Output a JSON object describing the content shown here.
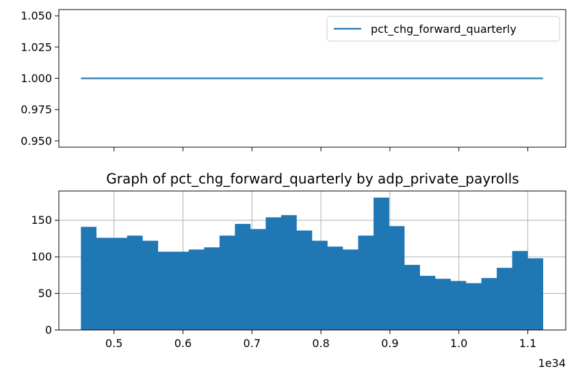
{
  "chart_data": [
    {
      "type": "line",
      "title": "",
      "xlabel": "",
      "ylabel": "",
      "xlim": [
        0.42,
        1.155
      ],
      "ylim": [
        0.945,
        1.055
      ],
      "grid": false,
      "legend_position": "top-right",
      "yticks": [
        0.95,
        0.975,
        1.0,
        1.025,
        1.05
      ],
      "ytick_labels": [
        "0.950",
        "0.975",
        "1.000",
        "1.025",
        "1.050"
      ],
      "xticks": [
        0.5,
        0.6,
        0.7,
        0.8,
        0.9,
        1.0,
        1.1
      ],
      "series": [
        {
          "name": "pct_chg_forward_quarterly",
          "color": "#1f77b4",
          "x": [
            0.452,
            1.122
          ],
          "y": [
            1.0,
            1.0
          ]
        }
      ]
    },
    {
      "type": "bar",
      "title": "Graph of pct_chg_forward_quarterly by adp_private_payrolls",
      "xlabel": "",
      "ylabel": "",
      "x_offset_label": "1e34",
      "xlim": [
        0.42,
        1.155
      ],
      "ylim": [
        0,
        190
      ],
      "grid": true,
      "color": "#1f77b4",
      "xticks": [
        0.5,
        0.6,
        0.7,
        0.8,
        0.9,
        1.0,
        1.1
      ],
      "xtick_labels": [
        "0.5",
        "0.6",
        "0.7",
        "0.8",
        "0.9",
        "1.0",
        "1.1"
      ],
      "yticks": [
        0,
        50,
        100,
        150
      ],
      "ytick_labels": [
        "0",
        "50",
        "100",
        "150"
      ],
      "bins": {
        "start": 0.452,
        "end": 1.122,
        "count": 30
      },
      "values": [
        141,
        126,
        126,
        129,
        122,
        107,
        107,
        110,
        113,
        129,
        145,
        138,
        154,
        157,
        136,
        122,
        114,
        110,
        129,
        181,
        142,
        89,
        74,
        70,
        67,
        64,
        71,
        85,
        108,
        98
      ]
    }
  ]
}
